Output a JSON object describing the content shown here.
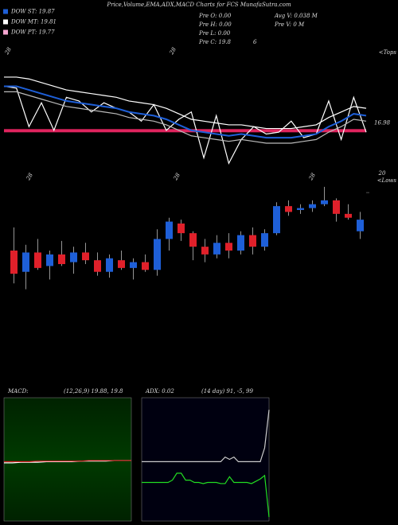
{
  "chart_data": [
    {
      "type": "line",
      "title": "Price,Volume,EMA,ADX,MACD Charts for FCS MunafaSutra.com",
      "legend": [
        {
          "label": "DOW ST: 19.87",
          "color": "#1e5fd8"
        },
        {
          "label": "DOW MT: 19.81",
          "color": "#ffffff"
        },
        {
          "label": "DOW PT: 19.77",
          "color": "#f4a6d0"
        }
      ],
      "info": [
        "Pre  O: 0.00",
        "Pre  H: 0.00",
        "Pre  L: 0.00",
        "Pre  C: 19.8",
        "6",
        "Avg V: 0.038  M",
        "Pre  V: 0  M"
      ],
      "corner_label": "<Tops",
      "x_labels": [
        "28",
        "28"
      ],
      "hline": 16.98,
      "hline_color": "#e0245e",
      "ylim": [
        15,
        21.5
      ],
      "series": [
        {
          "name": "Price",
          "color": "#ffffff",
          "values": [
            19.4,
            19.3,
            17.2,
            18.5,
            17.0,
            18.8,
            18.6,
            18.0,
            18.5,
            18.2,
            18.0,
            17.5,
            18.4,
            17.0,
            17.6,
            18.0,
            15.5,
            17.8,
            15.2,
            16.5,
            17.2,
            16.8,
            16.9,
            17.5,
            16.6,
            16.8,
            18.6,
            16.5,
            18.8,
            16.9
          ]
        },
        {
          "name": "Upper",
          "color": "#ffffff",
          "values": [
            19.9,
            19.9,
            19.8,
            19.6,
            19.4,
            19.2,
            19.1,
            19.0,
            18.9,
            18.8,
            18.6,
            18.5,
            18.4,
            18.2,
            17.9,
            17.6,
            17.5,
            17.4,
            17.3,
            17.3,
            17.2,
            17.1,
            17.1,
            17.1,
            17.2,
            17.3,
            17.7,
            18.0,
            18.3,
            18.2
          ]
        },
        {
          "name": "EMA",
          "color": "#1e5fd8",
          "values": [
            19.4,
            19.4,
            19.2,
            19.0,
            18.8,
            18.6,
            18.5,
            18.4,
            18.3,
            18.2,
            18.0,
            17.9,
            17.8,
            17.6,
            17.3,
            17.0,
            16.9,
            16.8,
            16.7,
            16.8,
            16.7,
            16.6,
            16.6,
            16.6,
            16.7,
            16.8,
            17.2,
            17.5,
            17.9,
            17.8
          ]
        },
        {
          "name": "Lower",
          "color": "#bbbbbb",
          "values": [
            19.1,
            19.1,
            18.9,
            18.7,
            18.5,
            18.3,
            18.2,
            18.1,
            18.0,
            17.9,
            17.7,
            17.6,
            17.5,
            17.3,
            17.0,
            16.7,
            16.6,
            16.5,
            16.4,
            16.5,
            16.4,
            16.3,
            16.3,
            16.3,
            16.4,
            16.5,
            16.9,
            17.2,
            17.6,
            17.5
          ]
        }
      ]
    },
    {
      "type": "candlestick",
      "corner_label": "<Lows",
      "x_labels": [
        "28",
        "28",
        "28"
      ],
      "ylim": [
        13.5,
        20.5
      ],
      "yticks": [
        20
      ],
      "up_color": "#1e5fd8",
      "down_color": "#e0202a",
      "open": [
        17.0,
        15.9,
        16.9,
        16.2,
        16.8,
        16.4,
        16.9,
        16.5,
        15.9,
        16.5,
        16.1,
        16.4,
        16.0,
        17.6,
        18.4,
        17.9,
        17.2,
        16.8,
        17.4,
        17.0,
        17.8,
        17.2,
        17.9,
        19.3,
        19.1,
        19.2,
        19.4,
        19.6,
        18.9,
        18.0
      ],
      "high": [
        18.2,
        17.3,
        17.6,
        17.0,
        17.5,
        17.2,
        17.4,
        16.9,
        16.8,
        17.0,
        16.6,
        16.8,
        18.1,
        18.7,
        18.6,
        18.0,
        17.6,
        17.8,
        17.9,
        18.0,
        18.2,
        18.1,
        19.5,
        19.6,
        19.4,
        19.6,
        20.3,
        19.7,
        19.4,
        19.0
      ],
      "low": [
        15.3,
        15.0,
        16.0,
        15.5,
        16.2,
        15.8,
        16.3,
        15.7,
        15.6,
        16.0,
        15.5,
        15.9,
        15.7,
        17.0,
        17.5,
        16.5,
        16.4,
        16.6,
        16.6,
        16.8,
        16.8,
        17.0,
        17.8,
        18.8,
        18.9,
        19.0,
        19.3,
        18.5,
        18.6,
        17.6
      ],
      "close": [
        15.8,
        16.9,
        16.1,
        16.8,
        16.3,
        16.9,
        16.5,
        15.9,
        16.6,
        16.1,
        16.4,
        16.0,
        17.6,
        18.5,
        17.9,
        17.2,
        16.8,
        17.4,
        17.0,
        17.8,
        17.2,
        17.9,
        19.3,
        19.0,
        19.2,
        19.4,
        19.6,
        18.9,
        18.7,
        18.6
      ]
    },
    {
      "type": "line",
      "title": "MACD:",
      "subtitle": "(12,26,9) 19.88, 19.8",
      "ylim": [
        -1,
        1
      ],
      "series": [
        {
          "name": "MACD",
          "color": "#ffffff",
          "values": [
            -0.06,
            -0.06,
            -0.05,
            -0.05,
            -0.05,
            -0.04,
            -0.04,
            -0.04,
            -0.04,
            -0.03,
            -0.03,
            -0.03,
            -0.03,
            -0.02,
            -0.02,
            -0.02
          ]
        },
        {
          "name": "Signal",
          "color": "#e0202a",
          "values": [
            -0.04,
            -0.04,
            -0.04,
            -0.04,
            -0.03,
            -0.03,
            -0.03,
            -0.03,
            -0.03,
            -0.03,
            -0.02,
            -0.02,
            -0.02,
            -0.02,
            -0.02,
            -0.02
          ]
        }
      ]
    },
    {
      "type": "line",
      "title": "ADX: 0.02",
      "subtitle": "(14 day) 91, -5, 99",
      "ylim": [
        0,
        100
      ],
      "series": [
        {
          "name": "ADX",
          "color": "#cccccc",
          "values": [
            48,
            48,
            48,
            48,
            48,
            48,
            48,
            48,
            48,
            48,
            48,
            48,
            48,
            48,
            48,
            48,
            48,
            48,
            48,
            52,
            50,
            52,
            48,
            48,
            48,
            48,
            48,
            48,
            60,
            93
          ]
        },
        {
          "name": "DI",
          "color": "#22dd22",
          "values": [
            30,
            30,
            30,
            30,
            30,
            30,
            30,
            32,
            38,
            38,
            32,
            32,
            30,
            30,
            29,
            30,
            30,
            30,
            29,
            29,
            35,
            30,
            30,
            30,
            30,
            29,
            31,
            33,
            36,
            0
          ]
        }
      ]
    }
  ]
}
